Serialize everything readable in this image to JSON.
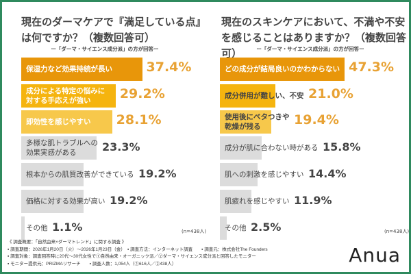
{
  "colors": {
    "rank1": "#e8960a",
    "rank2": "#f5b40f",
    "rank3": "#f7c84b",
    "other": "#dcdcdc",
    "pct_highlight": "#e8a234",
    "pct_other": "#444444",
    "border": "#2f8a5e"
  },
  "chart_data": [
    {
      "type": "bar",
      "orientation": "horizontal",
      "title": "現在のダーマケアで『満足している点』は何ですか？（複数回答可）",
      "subtitle": "ー「ダーマ・サイエンス成分派」の方が回答ー",
      "note": "(n=438人)",
      "unit": "%",
      "categories": [
        "保湿力など効果持続が長い",
        "成分による特定の悩みに対する手応えが強い",
        "即効性を感じやすい",
        "多様な肌トラブルへの効果実感がある",
        "根本からの肌質改善ができている",
        "価格に対する効果が高い",
        "その他"
      ],
      "labels": [
        [
          "保湿力など効果持続が長い"
        ],
        [
          "成分による特定の悩みに",
          "対する手応えが強い"
        ],
        [
          "即効性を感じやすい"
        ],
        [
          "多様な肌トラブルへの",
          "効果実感がある"
        ],
        [
          "根本からの肌質改善ができている"
        ],
        [
          "価格に対する効果が高い"
        ],
        [
          "その他"
        ]
      ],
      "values": [
        37.4,
        29.2,
        28.1,
        23.3,
        19.2,
        19.2,
        1.1
      ],
      "value_labels": [
        "37.4%",
        "29.2%",
        "28.1%",
        "23.3%",
        "19.2%",
        "19.2%",
        "1.1%"
      ]
    },
    {
      "type": "bar",
      "orientation": "horizontal",
      "title": "現在のスキンケアにおいて、不満や不安を感じることはありますか？（複数回答可）",
      "subtitle": "ー「ダーマ・サイエンス成分派」の方が回答ー",
      "note": "(n=438人)",
      "unit": "%",
      "categories": [
        "どの成分が結局良いのかわからない",
        "成分併用が難しい、不安",
        "使用後にベタつきや乾燥が残る",
        "成分が肌に合わない時がある",
        "肌への刺激を感じやすい",
        "肌疲れを感じやすい",
        "その他"
      ],
      "labels": [
        [
          "どの成分が結局良いのかわからない"
        ],
        [
          "成分併用が難しい、不安"
        ],
        [
          "使用後にベタつきや",
          "乾燥が残る"
        ],
        [
          "成分が肌に合わない時がある"
        ],
        [
          "肌への刺激を感じやすい"
        ],
        [
          "肌疲れを感じやすい"
        ],
        [
          "その他"
        ]
      ],
      "values": [
        47.3,
        21.0,
        19.4,
        15.8,
        14.4,
        11.9,
        2.5
      ],
      "value_labels": [
        "47.3%",
        "21.0%",
        "19.4%",
        "15.8%",
        "14.4%",
        "11.9%",
        "2.5%"
      ]
    }
  ],
  "footer": {
    "lines": [
      "《 調査概要：「自然由来×ダーマトレンド」に関する調査 》",
      "▪ 調査期間：2026年1月20日（火）～2026年1月23日（金）　▪ 調査方法：インターネット調査　　▪ 調査元：株式会社The Founders",
      "▪ 調査対象：調査回答時に20代～30代女性で①自然由来・オーガニック派／②ダーマ・サイエンス成分派と回答したモニター",
      "▪ モニター提供元：PRIZMAリサーチ　　▪ 調査人数：1,054人（①616人／②438人）"
    ],
    "logo": "Anua"
  }
}
